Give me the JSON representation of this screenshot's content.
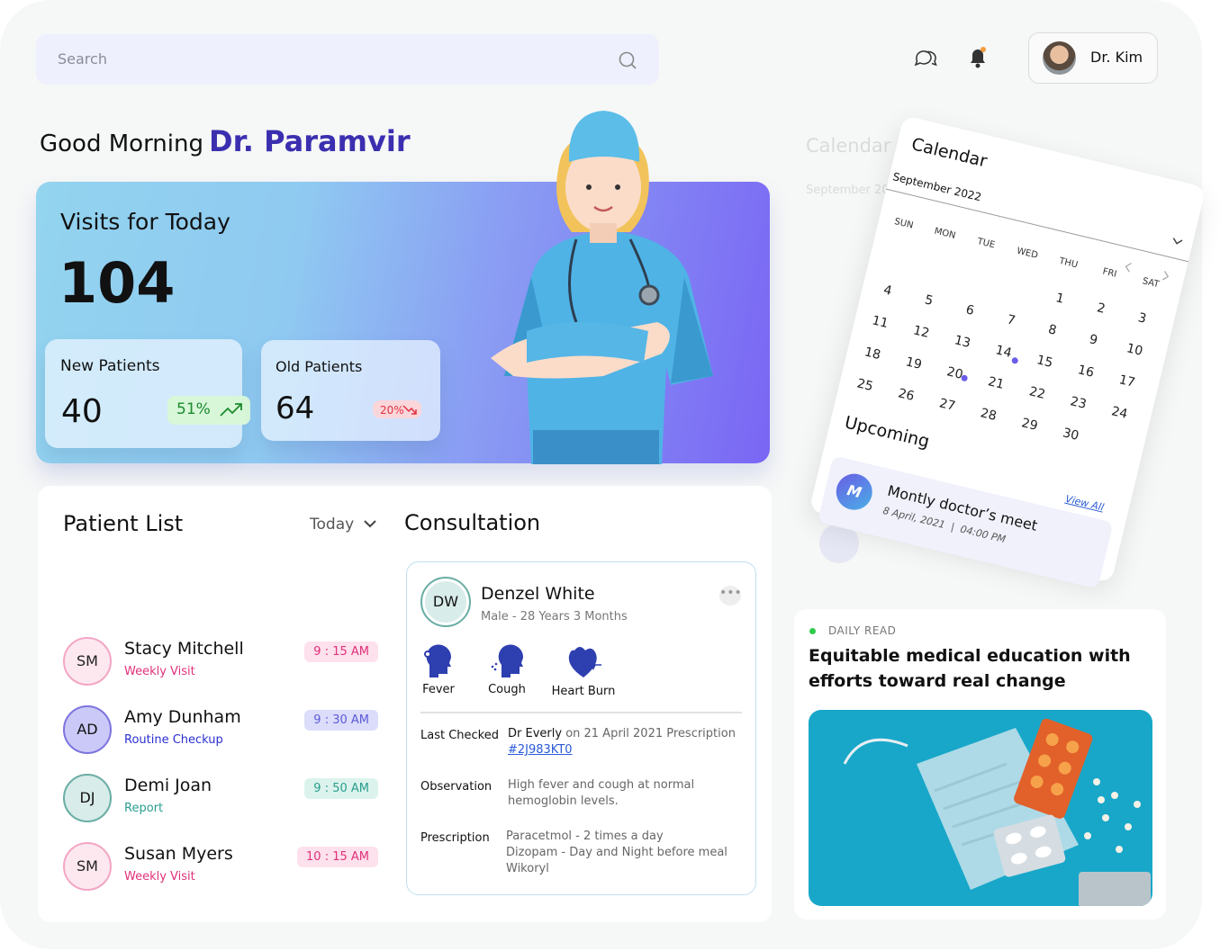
{
  "search": {
    "placeholder": "Search"
  },
  "user": {
    "name": "Dr. Kim"
  },
  "greeting": {
    "text": "Good Morning",
    "name": "Dr. Paramvir"
  },
  "visits": {
    "title": "Visits for Today",
    "total": 104,
    "new_patients": {
      "label": "New Patients",
      "value": 40,
      "change": "51%"
    },
    "old_patients": {
      "label": "Old Patients",
      "value": 64,
      "change": "20%"
    }
  },
  "patient_list": {
    "title": "Patient List",
    "filter": "Today",
    "patients": [
      {
        "initials": "SM",
        "name": "Stacy Mitchell",
        "type": "Weekly Visit",
        "time": "9 : 15 AM"
      },
      {
        "initials": "AD",
        "name": "Amy Dunham",
        "type": "Routine Checkup",
        "time": "9 : 30 AM"
      },
      {
        "initials": "DJ",
        "name": "Demi Joan",
        "type": "Report",
        "time": "9 : 50 AM"
      },
      {
        "initials": "SM",
        "name": "Susan Myers",
        "type": "Weekly Visit",
        "time": "10 : 15 AM"
      }
    ]
  },
  "consultation": {
    "title": "Consultation",
    "patient": {
      "initials": "DW",
      "name": "Denzel White",
      "details": "Male - 28 Years 3 Months"
    },
    "symptoms": [
      "Fever",
      "Cough",
      "Heart Burn"
    ],
    "last_checked": {
      "label": "Last Checked",
      "doctor": "Dr Everly",
      "text": "on 21 April 2021 Prescription",
      "id": "#2J983KT0"
    },
    "observation": {
      "label": "Observation",
      "text": "High fever and cough at normal hemoglobin levels."
    },
    "prescription": {
      "label": "Prescription",
      "lines": [
        "Paracetmol - 2 times a day",
        "Dizopam - Day and Night before meal",
        "Wikoryl"
      ]
    }
  },
  "calendar": {
    "title": "Calendar",
    "month": "September 2022",
    "weekdays": [
      "SUN",
      "MON",
      "TUE",
      "WED",
      "THU",
      "FRI",
      "SAT"
    ],
    "weeks": [
      [
        null,
        null,
        null,
        null,
        1,
        2,
        3
      ],
      [
        4,
        5,
        6,
        7,
        8,
        9,
        10
      ],
      [
        11,
        12,
        13,
        14,
        15,
        16,
        17
      ],
      [
        18,
        19,
        20,
        21,
        22,
        23,
        24
      ],
      [
        25,
        26,
        27,
        28,
        29,
        30,
        null
      ]
    ],
    "upcoming_title": "Upcoming",
    "view_all": "View All",
    "events": [
      {
        "initial": "M",
        "title": "Montly doctor’s meet",
        "date": "8 April, 2021",
        "time": "04:00 PM"
      }
    ]
  },
  "daily_read": {
    "label": "DAILY READ",
    "title": "Equitable medical education with efforts toward real change"
  }
}
